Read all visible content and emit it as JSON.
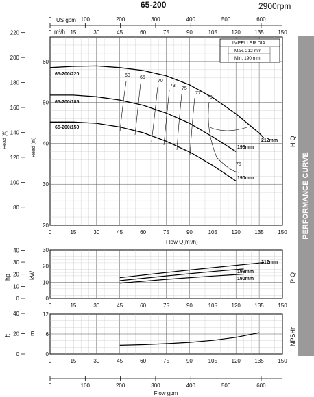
{
  "header": {
    "model": "65-200",
    "speed": "2900rpm"
  },
  "side_label": "PERFORMANCE CURVE",
  "impeller": {
    "title": "IMPELLER DIA.",
    "max": "Max.  212 mm",
    "min": "Min.   190 mm"
  },
  "axes": {
    "usgpm_label": "US gpm",
    "usgpm_ticks": [
      "0",
      "100",
      "200",
      "300",
      "400",
      "500",
      "600"
    ],
    "m3h_label": "m³/h",
    "flow_ticks": [
      "0",
      "15",
      "30",
      "45",
      "60",
      "75",
      "90",
      "105",
      "120",
      "135",
      "150"
    ],
    "flow_label": "Flow Q(m³/h)",
    "bottom_gpm_label": "Flow gpm",
    "bottom_gpm_ticks": [
      "0",
      "100",
      "200",
      "300",
      "400",
      "500",
      "600"
    ],
    "head_ft_label": "Head (ft)",
    "head_ft_ticks": [
      "220",
      "200",
      "180",
      "160",
      "140",
      "120",
      "100",
      "80"
    ],
    "head_m_label": "Head (m)",
    "head_m_ticks": [
      "60",
      "50",
      "40",
      "30",
      "20"
    ],
    "hq_label": "H-Q",
    "hp_label": "hp",
    "hp_ticks": [
      "40",
      "30",
      "20",
      "10",
      "0"
    ],
    "kw_label": "kW",
    "kw_ticks": [
      "30",
      "20",
      "10",
      "0"
    ],
    "pq_label": "P-Q",
    "ft_label": "ft",
    "ft_ticks": [
      "40",
      "20",
      "0"
    ],
    "m_label": "m",
    "m_ticks": [
      "12",
      "6",
      "0"
    ],
    "npsh_label": "NPSHr"
  },
  "chart_data": [
    {
      "type": "line",
      "name": "H-Q",
      "xlabel": "Flow Q(m³/h)",
      "ylabel": "Head (m)",
      "xlim": [
        0,
        150
      ],
      "ylim": [
        20,
        66
      ],
      "series": [
        {
          "name": "65-200/220",
          "x": [
            0,
            15,
            30,
            45,
            60,
            75,
            90,
            105,
            120,
            135,
            138
          ],
          "y": [
            58.5,
            58.8,
            58.9,
            58.5,
            57.8,
            56.5,
            54.3,
            51.2,
            47.2,
            42.5,
            41.3
          ]
        },
        {
          "name": "65-200/185",
          "x": [
            0,
            15,
            30,
            45,
            60,
            75,
            90,
            105,
            120
          ],
          "y": [
            51.8,
            51.8,
            51.4,
            50.6,
            49.3,
            47.4,
            44.9,
            41.6,
            38.0
          ]
        },
        {
          "name": "65-200/150",
          "x": [
            0,
            15,
            30,
            45,
            60,
            75,
            90,
            105,
            120
          ],
          "y": [
            45.2,
            45.2,
            44.9,
            44.0,
            42.6,
            40.5,
            37.9,
            34.6,
            30.8
          ]
        }
      ],
      "curve_end_labels": [
        "212mm",
        "198mm",
        "190mm"
      ],
      "efficiency_labels": [
        "60",
        "65",
        "70",
        "73",
        "75",
        "77",
        "78",
        "75"
      ]
    },
    {
      "type": "line",
      "name": "P-Q",
      "xlabel": "Flow Q(m³/h)",
      "ylabel": "kW",
      "xlim": [
        0,
        150
      ],
      "ylim": [
        0,
        30
      ],
      "series": [
        {
          "name": "212mm",
          "x": [
            45,
            75,
            105,
            138
          ],
          "y": [
            12.8,
            16.0,
            19.0,
            22.2
          ]
        },
        {
          "name": "198mm",
          "x": [
            45,
            75,
            105,
            125
          ],
          "y": [
            11.0,
            13.9,
            16.6,
            18.2
          ]
        },
        {
          "name": "190mm",
          "x": [
            45,
            75,
            105,
            125
          ],
          "y": [
            9.4,
            11.8,
            13.8,
            15.0
          ]
        }
      ]
    },
    {
      "type": "line",
      "name": "NPSHr",
      "xlabel": "Flow Q(m³/h)",
      "ylabel": "m",
      "xlim": [
        0,
        150
      ],
      "ylim": [
        0,
        12
      ],
      "series": [
        {
          "name": "NPSHr",
          "x": [
            45,
            60,
            75,
            90,
            105,
            120,
            135
          ],
          "y": [
            2.6,
            2.8,
            3.1,
            3.5,
            4.1,
            5.0,
            6.4
          ]
        }
      ]
    }
  ]
}
